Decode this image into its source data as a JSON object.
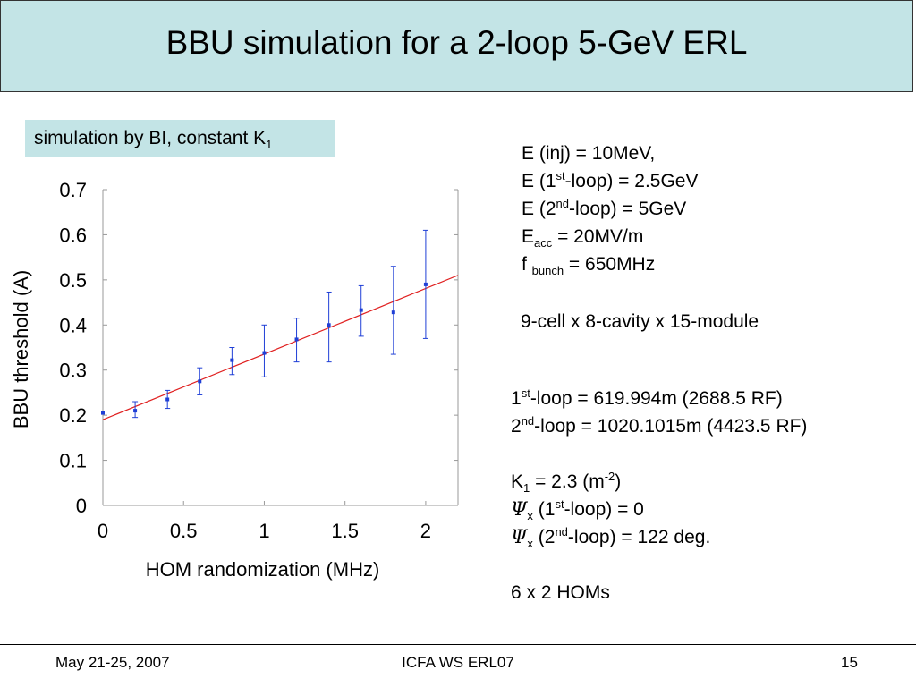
{
  "title": "BBU simulation for a 2-loop 5-GeV ERL",
  "sim_label": {
    "text": "simulation by BI, constant K",
    "sub": "1"
  },
  "params_block_1": {
    "inj": "E (inj) = 10MeV,",
    "loop1_pre": "E (1",
    "loop1_sup": "st",
    "loop1_post": "-loop) = 2.5GeV",
    "loop2_pre": "E (2",
    "loop2_sup": "nd",
    "loop2_post": "-loop) = 5GeV",
    "eacc_pre": "E",
    "eacc_sub": "acc",
    "eacc_post": " = 20MV/m",
    "fb_pre": "f ",
    "fb_sub": "bunch",
    "fb_post": " = 650MHz",
    "cavity": "9-cell x 8-cavity x 15-module"
  },
  "params_block_2": {
    "l1_pre": "1",
    "l1_sup": "st",
    "l1_post": "-loop = 619.994m (2688.5 RF)",
    "l2_pre": "2",
    "l2_sup": "nd",
    "l2_post": "-loop = 1020.1015m (4423.5 RF)",
    "k_pre": "K",
    "k_sub": "1",
    "k_mid": " = 2.3 (m",
    "k_sup": "-2",
    "k_post": ")",
    "psi_symbol": "Ψ",
    "psi1_sub": "x",
    "psi1_mid": " (1",
    "psi1_sup": "st",
    "psi1_post": "-loop) = 0",
    "psi2_sub": "x",
    "psi2_mid": " (2",
    "psi2_sup": "nd",
    "psi2_post": "-loop) = 122 deg.",
    "homs": "6 x 2 HOMs"
  },
  "footer": {
    "date": "May 21-25, 2007",
    "event": "ICFA WS ERL07",
    "page": "15"
  },
  "chart_data": {
    "type": "scatter",
    "title": "",
    "xlabel": "HOM randomization (MHz)",
    "ylabel": "BBU threshold (A)",
    "xlim": [
      0,
      2.2
    ],
    "ylim": [
      0,
      0.7
    ],
    "xticks": [
      0,
      0.5,
      1,
      1.5,
      2
    ],
    "xtick_labels": [
      "0",
      "0.5",
      "1",
      "1.5",
      "2"
    ],
    "yticks": [
      0,
      0.1,
      0.2,
      0.3,
      0.4,
      0.5,
      0.6,
      0.7
    ],
    "ytick_labels": [
      "0",
      "0.1",
      "0.2",
      "0.3",
      "0.4",
      "0.5",
      "0.6",
      "0.7"
    ],
    "points": [
      {
        "x": 0.0,
        "y": 0.205,
        "lo": 0.205,
        "hi": 0.205
      },
      {
        "x": 0.2,
        "y": 0.21,
        "lo": 0.195,
        "hi": 0.23
      },
      {
        "x": 0.4,
        "y": 0.235,
        "lo": 0.215,
        "hi": 0.255
      },
      {
        "x": 0.6,
        "y": 0.275,
        "lo": 0.245,
        "hi": 0.305
      },
      {
        "x": 0.8,
        "y": 0.322,
        "lo": 0.29,
        "hi": 0.35
      },
      {
        "x": 1.0,
        "y": 0.338,
        "lo": 0.285,
        "hi": 0.4
      },
      {
        "x": 1.2,
        "y": 0.368,
        "lo": 0.318,
        "hi": 0.415
      },
      {
        "x": 1.4,
        "y": 0.4,
        "lo": 0.318,
        "hi": 0.473
      },
      {
        "x": 1.6,
        "y": 0.433,
        "lo": 0.375,
        "hi": 0.487
      },
      {
        "x": 1.8,
        "y": 0.428,
        "lo": 0.335,
        "hi": 0.53
      },
      {
        "x": 2.0,
        "y": 0.49,
        "lo": 0.37,
        "hi": 0.61
      }
    ],
    "fit_line": {
      "x": [
        0,
        2.2
      ],
      "y": [
        0.19,
        0.51
      ]
    },
    "colors": {
      "points": "#1f3fd6",
      "fit": "#e02020",
      "axis": "#999999"
    }
  }
}
